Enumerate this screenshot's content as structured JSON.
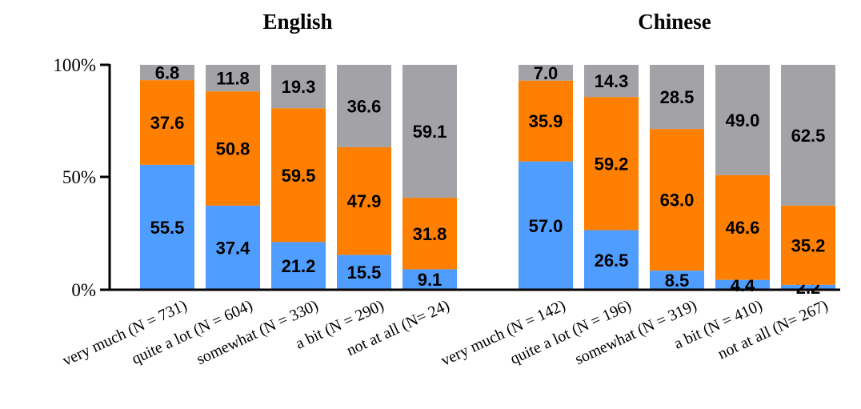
{
  "chart_data": [
    {
      "type": "bar",
      "stacked": true,
      "title": "English",
      "categories": [
        "very much (N = 731)",
        "quite a lot (N = 604)",
        "somewhat (N = 330)",
        "a bit (N = 290)",
        "not at all (N= 24)"
      ],
      "series": [
        {
          "color": "#4f9dff",
          "values": [
            55.5,
            37.4,
            21.2,
            15.5,
            9.1
          ]
        },
        {
          "color": "#ff7f00",
          "values": [
            37.6,
            50.8,
            59.5,
            47.9,
            31.8
          ]
        },
        {
          "color": "#a3a2a7",
          "values": [
            6.8,
            11.8,
            19.3,
            36.6,
            59.1
          ]
        }
      ],
      "ylim": [
        0,
        100
      ],
      "yticks": [
        "0%",
        "50%",
        "100%"
      ]
    },
    {
      "type": "bar",
      "stacked": true,
      "title": "Chinese",
      "categories": [
        "very much (N = 142)",
        "quite a lot (N = 196)",
        "somewhat (N = 319)",
        "a bit (N = 410)",
        "not at all (N= 267)"
      ],
      "series": [
        {
          "color": "#4f9dff",
          "values": [
            57.0,
            26.5,
            8.5,
            4.4,
            2.2
          ]
        },
        {
          "color": "#ff7f00",
          "values": [
            35.9,
            59.2,
            63.0,
            46.6,
            35.2
          ]
        },
        {
          "color": "#a3a2a7",
          "values": [
            7.0,
            14.3,
            28.5,
            49.0,
            62.5
          ]
        }
      ],
      "ylim": [
        0,
        100
      ]
    }
  ]
}
